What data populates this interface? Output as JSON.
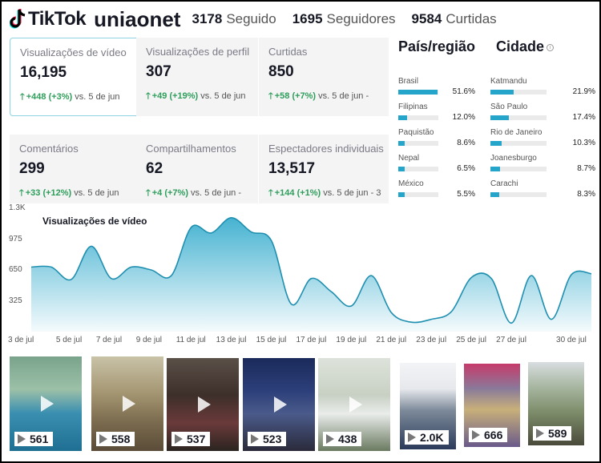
{
  "header": {
    "brand": "TikTok",
    "username": "uniaonet",
    "stats": [
      {
        "value": "3178",
        "label": "Seguido"
      },
      {
        "value": "1695",
        "label": "Seguidores"
      },
      {
        "value": "9584",
        "label": "Curtidas"
      }
    ]
  },
  "metrics": [
    {
      "label": "Visualizações de vídeo",
      "value": "16,195",
      "change": "+448 (+3%)",
      "compare": "vs. 5 de jun"
    },
    {
      "label": "Visualizações de perfil",
      "value": "307",
      "change": "+49 (+19%)",
      "compare": "vs. 5 de jun"
    },
    {
      "label": "Curtidas",
      "value": "850",
      "change": "+58 (+7%)",
      "compare": "vs. 5 de jun -"
    },
    {
      "label": "Comentários",
      "value": "299",
      "change": "+33 (+12%)",
      "compare": "vs. 5 de jun"
    },
    {
      "label": "Compartilhamentos",
      "value": "62",
      "change": "+4 (+7%)",
      "compare": "vs. 5 de jun -"
    },
    {
      "label": "Espectadores individuais",
      "value": "13,517",
      "change": "+144 (+1%)",
      "compare": "vs. 5 de jun - 3"
    }
  ],
  "regions": {
    "country_title": "País/região",
    "city_title": "Cidade",
    "countries": [
      {
        "name": "Brasil",
        "pct": "51.6%",
        "share": 0.516
      },
      {
        "name": "Filipinas",
        "pct": "12.0%",
        "share": 0.12
      },
      {
        "name": "Paquistão",
        "pct": "8.6%",
        "share": 0.086
      },
      {
        "name": "Nepal",
        "pct": "6.5%",
        "share": 0.065
      },
      {
        "name": "México",
        "pct": "5.5%",
        "share": 0.055
      }
    ],
    "cities": [
      {
        "name": "Katmandu",
        "pct": "21.9%",
        "share": 0.219
      },
      {
        "name": "São Paulo",
        "pct": "17.4%",
        "share": 0.174
      },
      {
        "name": "Rio de Janeiro",
        "pct": "10.3%",
        "share": 0.103
      },
      {
        "name": "Joanesburgo",
        "pct": "8.7%",
        "share": 0.087
      },
      {
        "name": "Carachi",
        "pct": "8.3%",
        "share": 0.083
      }
    ]
  },
  "chart_data": {
    "type": "area",
    "title": "Visualizações de vídeo",
    "ylim": [
      0,
      1300
    ],
    "y_ticks": [
      "1.3K",
      "975",
      "650",
      "325"
    ],
    "y_tick_values": [
      1300,
      975,
      650,
      325
    ],
    "x_ticks": [
      "3 de jul",
      "5 de jul",
      "7 de jul",
      "9 de jul",
      "11 de jul",
      "13 de jul",
      "15 de jul",
      "17 de jul",
      "19 de jul",
      "21 de jul",
      "23 de jul",
      "25 de jul",
      "27 de jul",
      "30 de jul"
    ],
    "x": [
      "3 de jul",
      "4 de jul",
      "5 de jul",
      "6 de jul",
      "7 de jul",
      "8 de jul",
      "9 de jul",
      "10 de jul",
      "11 de jul",
      "12 de jul",
      "13 de jul",
      "14 de jul",
      "15 de jul",
      "16 de jul",
      "17 de jul",
      "18 de jul",
      "19 de jul",
      "20 de jul",
      "21 de jul",
      "22 de jul",
      "23 de jul",
      "24 de jul",
      "25 de jul",
      "26 de jul",
      "27 de jul",
      "28 de jul",
      "29 de jul",
      "30 de jul",
      "31 de jul"
    ],
    "values": [
      680,
      680,
      550,
      900,
      560,
      680,
      650,
      590,
      1100,
      1040,
      1200,
      1050,
      960,
      290,
      560,
      420,
      270,
      590,
      200,
      100,
      130,
      210,
      570,
      560,
      90,
      590,
      130,
      600,
      610
    ],
    "color": "#25a5c9",
    "grid": false
  },
  "videos": [
    {
      "views": "561"
    },
    {
      "views": "558"
    },
    {
      "views": "537"
    },
    {
      "views": "523"
    },
    {
      "views": "438"
    },
    {
      "views": "2.0K"
    },
    {
      "views": "666"
    },
    {
      "views": "589"
    }
  ]
}
